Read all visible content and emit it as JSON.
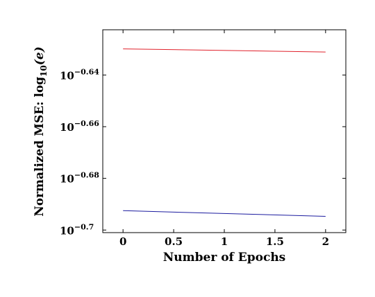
{
  "chart_data": {
    "type": "line",
    "xlabel": "Number of Epochs",
    "ylabel_text": "Normalized MSE: log",
    "ylabel_sub": "10",
    "ylabel_arg": "(e)",
    "y_scale": "log10",
    "xlim": [
      -0.2,
      2.2
    ],
    "ylim_exponent": [
      -0.701,
      -0.6225
    ],
    "x_ticks": [
      {
        "value": 0,
        "label": "0"
      },
      {
        "value": 0.5,
        "label": "0.5"
      },
      {
        "value": 1,
        "label": "1"
      },
      {
        "value": 1.5,
        "label": "1.5"
      },
      {
        "value": 2,
        "label": "2"
      }
    ],
    "y_ticks": [
      {
        "exponent": -0.64,
        "base": "10",
        "exp_label": "−0.64"
      },
      {
        "exponent": -0.66,
        "base": "10",
        "exp_label": "−0.66"
      },
      {
        "exponent": -0.68,
        "base": "10",
        "exp_label": "−0.68"
      },
      {
        "exponent": -0.7,
        "base": "10",
        "exp_label": "−0.7"
      }
    ],
    "series": [
      {
        "color": "#e0202a",
        "x": [
          0,
          2
        ],
        "y_exponent": [
          -0.6299,
          -0.6311
        ]
      },
      {
        "color": "#1a1a9e",
        "x": [
          0,
          2
        ],
        "y_exponent": [
          -0.6925,
          -0.6947
        ]
      }
    ],
    "grid": false
  }
}
